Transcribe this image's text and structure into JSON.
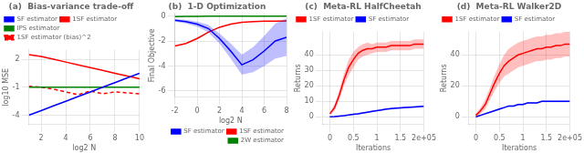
{
  "chart_data": [
    {
      "type": "line",
      "title": "(a)  Bias-variance trade-off",
      "x_label": "log2 N",
      "y_label": "log10 MSE",
      "x": [
        1,
        2,
        3,
        4,
        5,
        6,
        7,
        8,
        9,
        10
      ],
      "series": [
        {
          "name": "SF estimator",
          "color": "#0000ff",
          "line_style": "solid",
          "values": [
            -4.0,
            -3.5,
            -3.0,
            -2.5,
            -2.0,
            -1.5,
            -1.0,
            -0.5,
            0.0,
            0.5
          ]
        },
        {
          "name": "1SF estimator",
          "color": "#ff0000",
          "line_style": "solid",
          "values": [
            2.5,
            2.3,
            2.0,
            1.7,
            1.4,
            1.1,
            0.8,
            0.5,
            0.2,
            -0.1
          ]
        },
        {
          "name": "IPS estimator",
          "color": "#008000",
          "line_style": "solid",
          "values": [
            -1.0,
            -1.0,
            -1.0,
            -1.0,
            -1.0,
            -1.0,
            -1.0,
            -1.0,
            -1.0,
            -1.0
          ]
        },
        {
          "name": "1SF estimator (bias)^2",
          "color": "#ff0000",
          "line_style": "dashed",
          "values": [
            -0.9,
            -1.0,
            -1.2,
            -1.5,
            -1.8,
            -1.4,
            -1.7,
            -1.5,
            -1.6,
            -1.7
          ]
        }
      ],
      "xlim": [
        1,
        10
      ],
      "ylim": [
        -5,
        3
      ],
      "xticks": [
        2,
        4,
        6,
        8,
        10
      ],
      "yticks": [
        -4,
        -1,
        2
      ],
      "grid": true,
      "legend": "upper left"
    },
    {
      "type": "line",
      "title": "(b)  1-D Optimization",
      "x_label": "log2 N",
      "y_label": "Final Objective",
      "x": [
        -2,
        -1,
        0,
        1,
        2,
        3,
        4,
        5,
        6,
        7,
        8
      ],
      "series": [
        {
          "name": "SF estimator",
          "color": "#0000ff",
          "line_style": "solid",
          "values": [
            -0.35,
            -0.45,
            -0.65,
            -1.0,
            -1.8,
            -2.8,
            -3.9,
            -3.5,
            -2.8,
            -2.0,
            -1.7
          ],
          "std": [
            0.1,
            0.15,
            0.2,
            0.3,
            0.4,
            0.6,
            0.8,
            1.0,
            1.2,
            1.4,
            1.5
          ]
        },
        {
          "name": "1SF estimator",
          "color": "#ff0000",
          "line_style": "solid",
          "values": [
            -2.4,
            -2.2,
            -1.8,
            -1.3,
            -0.9,
            -0.65,
            -0.5,
            -0.45,
            -0.42,
            -0.41,
            -0.4
          ]
        },
        {
          "name": "2W estimator",
          "color": "#008000",
          "line_style": "solid",
          "values": [
            -0.05,
            -0.04,
            -0.03,
            -0.02,
            -0.01,
            -0.01,
            -0.01,
            -0.01,
            -0.01,
            -0.01,
            -0.01
          ]
        }
      ],
      "xlim": [
        -2,
        8
      ],
      "ylim": [
        -6.5,
        0.2
      ],
      "xticks": [
        -2,
        0,
        2,
        4,
        6,
        8
      ],
      "yticks": [
        -6,
        -4,
        -2,
        0
      ],
      "grid": true,
      "legend": "lower right"
    },
    {
      "type": "line",
      "title": "(c)  Meta-RL HalfCheetah",
      "x_label": "Iterations",
      "y_label": "Returns",
      "x": [
        0,
        0.1,
        0.2,
        0.3,
        0.4,
        0.5,
        0.6,
        0.7,
        0.8,
        0.9,
        1.0,
        1.1,
        1.2,
        1.3,
        1.4,
        1.5,
        1.6,
        1.7,
        1.8,
        1.9,
        2.0
      ],
      "series": [
        {
          "name": "1SF estimator",
          "color": "#ff0000",
          "line_style": "solid",
          "values": [
            2,
            6,
            14,
            24,
            32,
            37,
            41,
            43,
            44,
            44,
            45,
            45,
            45,
            46,
            46,
            46,
            46,
            46,
            47,
            47,
            47
          ],
          "std": [
            1,
            2,
            3,
            4,
            5,
            5,
            4,
            4,
            4,
            3,
            3,
            3,
            3,
            3,
            3,
            3,
            3,
            3,
            3,
            3,
            3
          ]
        },
        {
          "name": "SF estimator",
          "color": "#0000ff",
          "line_style": "solid",
          "values": [
            0,
            0.2,
            0.5,
            0.8,
            1.2,
            1.6,
            2.0,
            2.5,
            3.0,
            3.5,
            4.0,
            4.5,
            5.0,
            5.3,
            5.6,
            5.8,
            6.0,
            6.2,
            6.4,
            6.6,
            6.8
          ],
          "std": [
            0.3,
            0.3,
            0.3,
            0.4,
            0.4,
            0.5,
            0.5,
            0.5,
            0.5,
            0.5,
            0.5,
            0.5,
            0.5,
            0.5,
            0.5,
            0.5,
            0.5,
            0.5,
            0.5,
            0.5,
            0.5
          ]
        }
      ],
      "xlim": [
        -0.15,
        2.0
      ],
      "ylim": [
        -5,
        55
      ],
      "xticks": [
        0,
        0.5,
        1,
        1.5,
        {
          "value": 2,
          "label": "2e+05"
        }
      ],
      "yticks": [
        0,
        10,
        20,
        30,
        40
      ],
      "grid": true,
      "legend": "upper left"
    },
    {
      "type": "line",
      "title": "(d)  Meta-RL Walker2D",
      "x_label": "Iterations",
      "y_label": "Returns",
      "x": [
        0,
        0.1,
        0.2,
        0.3,
        0.4,
        0.5,
        0.6,
        0.7,
        0.8,
        0.9,
        1.0,
        1.1,
        1.2,
        1.3,
        1.4,
        1.5,
        1.6,
        1.7,
        1.8,
        1.9,
        2.0
      ],
      "series": [
        {
          "name": "1SF estimator",
          "color": "#ff0000",
          "line_style": "solid",
          "values": [
            1,
            4,
            8,
            15,
            22,
            28,
            33,
            36,
            38,
            40,
            41,
            42,
            43,
            44,
            44,
            45,
            45,
            46,
            46,
            47,
            47
          ],
          "std": [
            1,
            2,
            3,
            4,
            5,
            6,
            7,
            8,
            8,
            8,
            8,
            8,
            8,
            8,
            8,
            8,
            8,
            8,
            8,
            8,
            8
          ]
        },
        {
          "name": "SF estimator",
          "color": "#0000ff",
          "line_style": "solid",
          "values": [
            0,
            1,
            2,
            3,
            4,
            5,
            6,
            7,
            7,
            8,
            8,
            9,
            9,
            9,
            10,
            10,
            10,
            10,
            10,
            10,
            10
          ],
          "std": [
            0.5,
            0.5,
            0.5,
            0.5,
            0.5,
            0.5,
            0.5,
            0.5,
            0.5,
            0.5,
            0.5,
            0.5,
            0.5,
            0.5,
            0.5,
            0.5,
            0.5,
            0.5,
            0.5,
            0.5,
            0.5
          ]
        }
      ],
      "xlim": [
        -0.15,
        2.0
      ],
      "ylim": [
        -5,
        55
      ],
      "xticks": [
        0,
        0.5,
        1,
        1.5,
        {
          "value": 2,
          "label": "2e+05"
        }
      ],
      "yticks": [
        0,
        20,
        40
      ],
      "grid": true,
      "legend": "upper left"
    }
  ]
}
